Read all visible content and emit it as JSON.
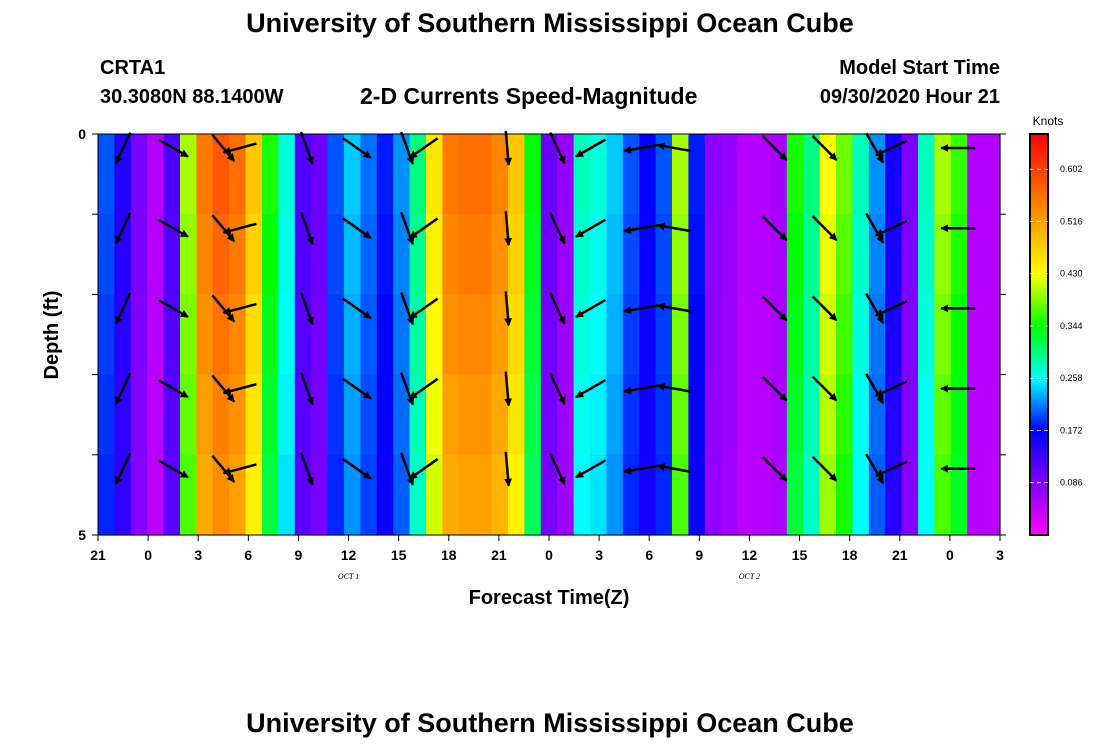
{
  "header": {
    "title": "University of Southern Mississippi Ocean Cube",
    "station_id": "CRTA1",
    "coords": "30.3080N 88.1400W",
    "chart_title": "2-D Currents Speed-Magnitude",
    "model_start_label": "Model Start Time",
    "model_start_value": "09/30/2020 Hour 21"
  },
  "footer": {
    "title": "University of Southern Mississippi Ocean Cube"
  },
  "chart_data": {
    "type": "heatmap",
    "title": "2-D Currents Speed-Magnitude",
    "xlabel": "Forecast Time(Z)",
    "ylabel": "Depth (ft)",
    "x_tick_labels": [
      "21",
      "0",
      "3",
      "6",
      "9",
      "12",
      "15",
      "18",
      "21",
      "0",
      "3",
      "6",
      "9",
      "12",
      "15",
      "18",
      "21",
      "0",
      "3"
    ],
    "date_labels": [
      {
        "text": "OCT 1",
        "tick_index": 5
      },
      {
        "text": "OCT 2",
        "tick_index": 13
      }
    ],
    "x_range_hours": [
      0,
      54
    ],
    "time_step_hours": 1,
    "y_tick_labels": [
      "0",
      "5"
    ],
    "y_range_ft": [
      0,
      5
    ],
    "depth_levels": 5,
    "colorbar": {
      "unit": "Knots",
      "range": [
        0.0,
        0.66
      ],
      "tick_values": [
        0.086,
        0.172,
        0.258,
        0.344,
        0.43,
        0.516,
        0.602
      ],
      "tick_labels": [
        "0.086",
        "0.172",
        "0.258",
        "0.344",
        "0.430",
        "0.516",
        "0.602"
      ]
    },
    "speed_knots": [
      0.2,
      0.15,
      0.09,
      0.05,
      0.12,
      0.4,
      0.55,
      0.58,
      0.56,
      0.48,
      0.35,
      0.27,
      0.12,
      0.1,
      0.2,
      0.24,
      0.21,
      0.18,
      0.22,
      0.3,
      0.45,
      0.55,
      0.56,
      0.56,
      0.54,
      0.48,
      0.34,
      0.1,
      0.07,
      0.28,
      0.27,
      0.24,
      0.2,
      0.17,
      0.2,
      0.4,
      0.18,
      0.08,
      0.07,
      0.05,
      0.05,
      0.06,
      0.35,
      0.3,
      0.43,
      0.38,
      0.28,
      0.22,
      0.16,
      0.09,
      0.28,
      0.4,
      0.36,
      0.05,
      0.05
    ],
    "arrows": [
      {
        "hour": 1,
        "dir_deg": 205
      },
      {
        "hour": 4,
        "dir_deg": 120
      },
      {
        "hour": 7,
        "dir_deg": 140
      },
      {
        "hour": 8,
        "dir_deg": 255
      },
      {
        "hour": 12,
        "dir_deg": 160
      },
      {
        "hour": 15,
        "dir_deg": 125
      },
      {
        "hour": 18,
        "dir_deg": 160
      },
      {
        "hour": 19,
        "dir_deg": 235
      },
      {
        "hour": 24,
        "dir_deg": 175
      },
      {
        "hour": 27,
        "dir_deg": 155
      },
      {
        "hour": 29,
        "dir_deg": 240
      },
      {
        "hour": 32,
        "dir_deg": 260
      },
      {
        "hour": 34,
        "dir_deg": 280
      },
      {
        "hour": 40,
        "dir_deg": 135
      },
      {
        "hour": 43,
        "dir_deg": 135
      },
      {
        "hour": 46,
        "dir_deg": 150
      },
      {
        "hour": 47,
        "dir_deg": 245
      },
      {
        "hour": 51,
        "dir_deg": 270
      }
    ]
  }
}
